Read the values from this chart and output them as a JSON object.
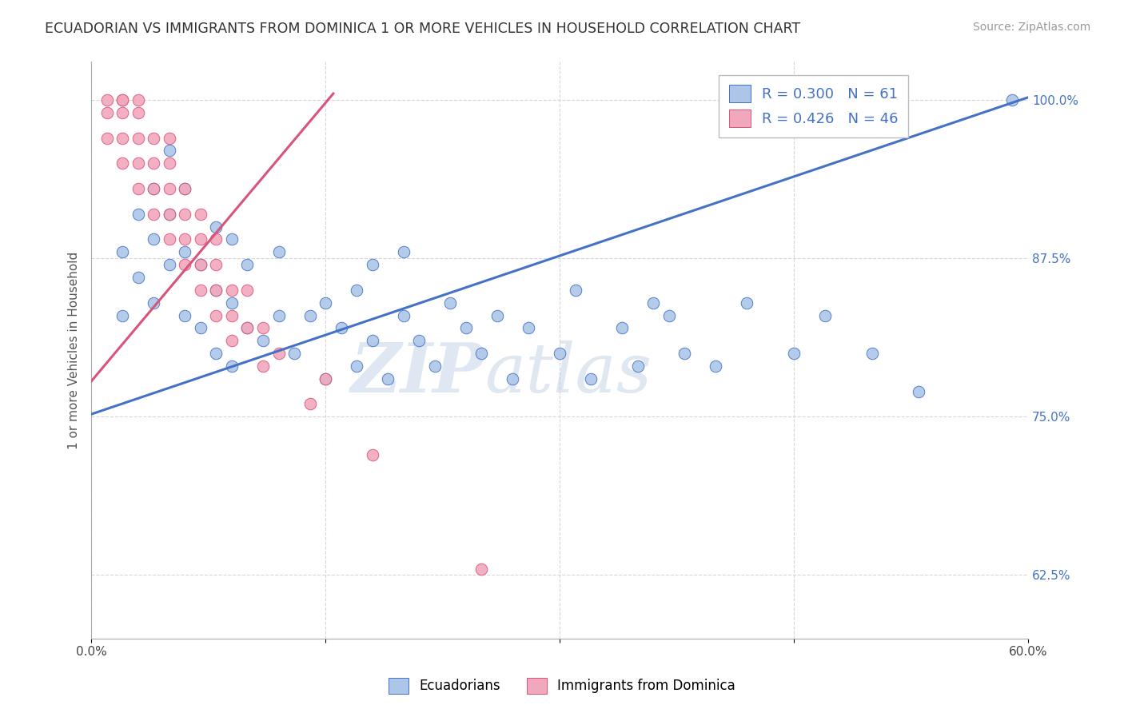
{
  "title": "ECUADORIAN VS IMMIGRANTS FROM DOMINICA 1 OR MORE VEHICLES IN HOUSEHOLD CORRELATION CHART",
  "source_text": "Source: ZipAtlas.com",
  "ylabel": "1 or more Vehicles in Household",
  "legend_label1": "Ecuadorians",
  "legend_label2": "Immigrants from Dominica",
  "r1": 0.3,
  "n1": 61,
  "r2": 0.426,
  "n2": 46,
  "xmin": 0.0,
  "xmax": 0.6,
  "ymin": 0.575,
  "ymax": 1.03,
  "yticks": [
    0.625,
    0.75,
    0.875,
    1.0
  ],
  "ytick_labels": [
    "62.5%",
    "75.0%",
    "87.5%",
    "100.0%"
  ],
  "xticks": [
    0.0,
    0.15,
    0.3,
    0.45,
    0.6
  ],
  "xtick_labels": [
    "0.0%",
    "",
    "",
    "",
    "60.0%"
  ],
  "color_blue": "#adc6e8",
  "color_pink": "#f2a8bc",
  "trendline_blue": "#4472c4",
  "trendline_pink": "#d9547a",
  "background_color": "#ffffff",
  "watermark_color": "#dce6f2",
  "blue_trend_x0": 0.0,
  "blue_trend_y0": 0.752,
  "blue_trend_x1": 0.6,
  "blue_trend_y1": 1.002,
  "pink_trend_x0": 0.0,
  "pink_trend_y0": 0.778,
  "pink_trend_x1": 0.155,
  "pink_trend_y1": 1.005,
  "blue_scatter_x": [
    0.02,
    0.02,
    0.03,
    0.03,
    0.04,
    0.04,
    0.04,
    0.05,
    0.05,
    0.05,
    0.06,
    0.06,
    0.06,
    0.07,
    0.07,
    0.08,
    0.08,
    0.08,
    0.09,
    0.09,
    0.09,
    0.1,
    0.1,
    0.11,
    0.12,
    0.12,
    0.13,
    0.14,
    0.15,
    0.15,
    0.16,
    0.17,
    0.17,
    0.18,
    0.18,
    0.19,
    0.2,
    0.2,
    0.21,
    0.22,
    0.23,
    0.24,
    0.25,
    0.26,
    0.27,
    0.28,
    0.3,
    0.31,
    0.32,
    0.34,
    0.35,
    0.36,
    0.37,
    0.38,
    0.4,
    0.42,
    0.45,
    0.47,
    0.5,
    0.53,
    0.59
  ],
  "blue_scatter_y": [
    0.83,
    0.88,
    0.86,
    0.91,
    0.84,
    0.89,
    0.93,
    0.87,
    0.91,
    0.96,
    0.83,
    0.88,
    0.93,
    0.82,
    0.87,
    0.8,
    0.85,
    0.9,
    0.79,
    0.84,
    0.89,
    0.82,
    0.87,
    0.81,
    0.83,
    0.88,
    0.8,
    0.83,
    0.78,
    0.84,
    0.82,
    0.79,
    0.85,
    0.81,
    0.87,
    0.78,
    0.83,
    0.88,
    0.81,
    0.79,
    0.84,
    0.82,
    0.8,
    0.83,
    0.78,
    0.82,
    0.8,
    0.85,
    0.78,
    0.82,
    0.79,
    0.84,
    0.83,
    0.8,
    0.79,
    0.84,
    0.8,
    0.83,
    0.8,
    0.77,
    1.0
  ],
  "pink_scatter_x": [
    0.01,
    0.01,
    0.01,
    0.02,
    0.02,
    0.02,
    0.02,
    0.02,
    0.03,
    0.03,
    0.03,
    0.03,
    0.03,
    0.04,
    0.04,
    0.04,
    0.04,
    0.05,
    0.05,
    0.05,
    0.05,
    0.05,
    0.06,
    0.06,
    0.06,
    0.06,
    0.07,
    0.07,
    0.07,
    0.07,
    0.08,
    0.08,
    0.08,
    0.08,
    0.09,
    0.09,
    0.09,
    0.1,
    0.1,
    0.11,
    0.11,
    0.12,
    0.14,
    0.15,
    0.18,
    0.25
  ],
  "pink_scatter_y": [
    0.97,
    0.99,
    1.0,
    0.95,
    0.97,
    0.99,
    1.0,
    1.0,
    0.93,
    0.95,
    0.97,
    0.99,
    1.0,
    0.91,
    0.93,
    0.95,
    0.97,
    0.89,
    0.91,
    0.93,
    0.95,
    0.97,
    0.87,
    0.89,
    0.91,
    0.93,
    0.85,
    0.87,
    0.89,
    0.91,
    0.83,
    0.85,
    0.87,
    0.89,
    0.81,
    0.83,
    0.85,
    0.82,
    0.85,
    0.79,
    0.82,
    0.8,
    0.76,
    0.78,
    0.72,
    0.63
  ]
}
